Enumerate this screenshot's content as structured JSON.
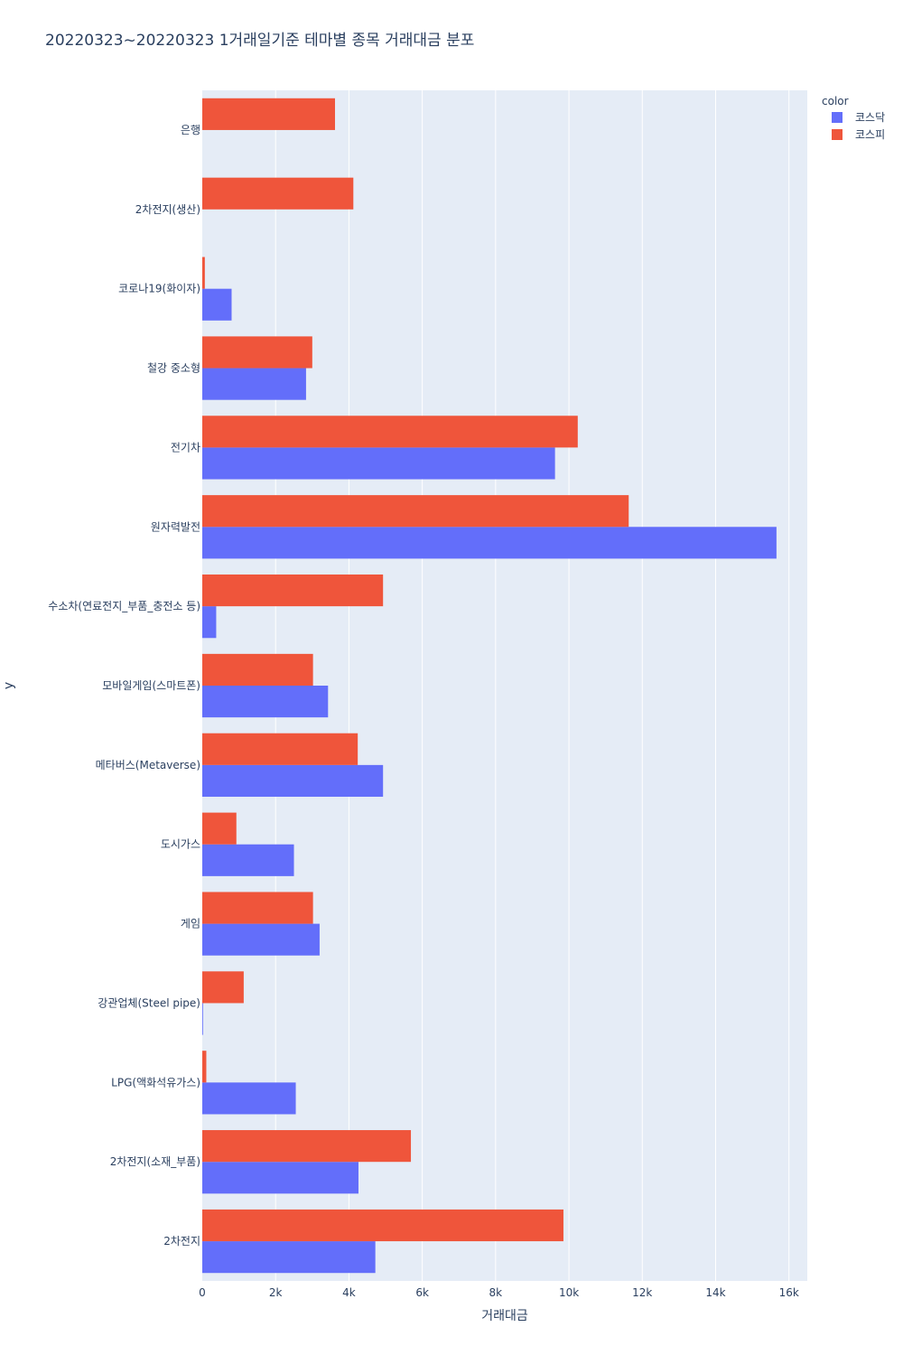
{
  "chart_data": {
    "type": "bar",
    "orientation": "horizontal",
    "barmode": "group",
    "title": "20220323~20220323 1거래일기준 테마별 종목 거래대금 분포",
    "xlabel": "거래대금",
    "ylabel": "y",
    "xlim": [
      0,
      16500
    ],
    "x_ticks": [
      0,
      2000,
      4000,
      6000,
      8000,
      10000,
      12000,
      14000,
      16000
    ],
    "x_tick_labels": [
      "0",
      "2k",
      "4k",
      "6k",
      "8k",
      "10k",
      "12k",
      "14k",
      "16k"
    ],
    "grid": true,
    "legend": {
      "title": "color",
      "placement": "top-right"
    },
    "categories": [
      "은행",
      "2차전지(생산)",
      "코로나19(화이자)",
      "철강 중소형",
      "전기차",
      "원자력발전",
      "수소차(연료전지_부품_충전소 등)",
      "모바일게임(스마트폰)",
      "메타버스(Metaverse)",
      "도시가스",
      "게임",
      "강관업체(Steel pipe)",
      "LPG(액화석유가스)",
      "2차전지(소재_부품)",
      "2차전지"
    ],
    "series": [
      {
        "name": "코스닥",
        "color": "#636efa",
        "values": [
          0,
          0,
          800,
          2830,
          9620,
          15660,
          380,
          3430,
          4930,
          2500,
          3200,
          20,
          2550,
          4260,
          4720
        ]
      },
      {
        "name": "코스피",
        "color": "#ef553b",
        "values": [
          3620,
          4120,
          70,
          3000,
          10240,
          11630,
          4930,
          3020,
          4240,
          930,
          3020,
          1130,
          110,
          5690,
          9850
        ]
      }
    ]
  }
}
